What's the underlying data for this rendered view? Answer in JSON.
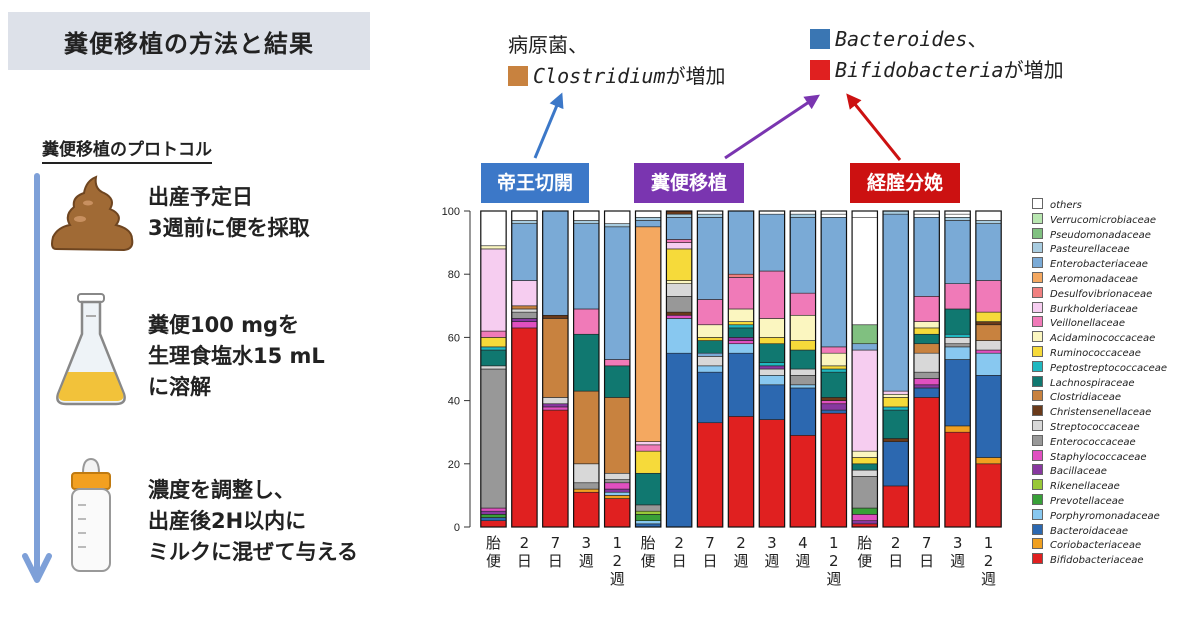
{
  "header": {
    "title": "糞便移植の方法と結果"
  },
  "protocol": {
    "heading": "糞便移植のプロトコル",
    "steps": [
      {
        "icon": "feces-icon",
        "text": "出産予定日\n3週前に便を採取"
      },
      {
        "icon": "flask-icon",
        "text": "糞便100 mgを\n生理食塩水15 mL\nに溶解"
      },
      {
        "icon": "baby-bottle-icon",
        "text": "濃度を調整し、\n出産後2H以内に\nミルクに混ぜて与える"
      }
    ]
  },
  "callouts": {
    "left": {
      "line1": "病原菌、",
      "taxon": "Clostridium",
      "suffix": "が増加",
      "swatch_color": "#c8823f"
    },
    "right": {
      "line1_taxon": "Bacteroides",
      "line1_suffix": "、",
      "line1_color": "#3a76b3",
      "line2_taxon": "Bifidobacteria",
      "line2_suffix": "が増加",
      "line2_color": "#e02020"
    }
  },
  "groups": [
    {
      "label": "帝王切開",
      "color": "#3c78c8"
    },
    {
      "label": "糞便移植",
      "color": "#7a35b0"
    },
    {
      "label": "経腟分娩",
      "color": "#cc1111"
    }
  ],
  "arrow_colors": [
    "#3c78c8",
    "#7a35b0",
    "#cc1111"
  ],
  "chart_data": {
    "type": "bar",
    "stacked": true,
    "ylim": [
      0,
      100
    ],
    "yticks": [
      0,
      20,
      40,
      60,
      80,
      100
    ],
    "categories": [
      "胎便",
      "2日",
      "7日",
      "3週",
      "12週",
      "胎便",
      "2日",
      "7日",
      "2週",
      "3週",
      "4週",
      "12週",
      "胎便",
      "2日",
      "7日",
      "3週",
      "12週"
    ],
    "category_glyphs": [
      [
        "胎",
        "便"
      ],
      [
        "2",
        "日"
      ],
      [
        "7",
        "日"
      ],
      [
        "3",
        "週"
      ],
      [
        "1",
        "2",
        "週"
      ],
      [
        "胎",
        "便"
      ],
      [
        "2",
        "日"
      ],
      [
        "7",
        "日"
      ],
      [
        "2",
        "週"
      ],
      [
        "3",
        "週"
      ],
      [
        "4",
        "週"
      ],
      [
        "1",
        "2",
        "週"
      ],
      [
        "胎",
        "便"
      ],
      [
        "2",
        "日"
      ],
      [
        "7",
        "日"
      ],
      [
        "3",
        "週"
      ],
      [
        "1",
        "2",
        "週"
      ]
    ],
    "legend_order": [
      "others",
      "Verrucomicrobiaceae",
      "Pseudomonadaceae",
      "Pasteurellaceae",
      "Enterobacteriaceae",
      "Aeromonadaceae",
      "Desulfovibrionaceae",
      "Burkholderiaceae",
      "Veillonellaceae",
      "Acidaminococcaceae",
      "Ruminococcaceae",
      "Peptostreptococcaceae",
      "Lachnospiraceae",
      "Clostridiaceae",
      "Christensenellaceae",
      "Streptococcaceae",
      "Enterococcaceae",
      "Staphylococcaceae",
      "Bacillaceae",
      "Rikenellaceae",
      "Prevotellaceae",
      "Porphyromonadaceae",
      "Bacteroidaceae",
      "Coriobacteriaceae",
      "Bifidobacteriaceae"
    ],
    "colors": {
      "others": "#ffffff",
      "Verrucomicrobiaceae": "#b8e6b0",
      "Pseudomonadaceae": "#80c080",
      "Pasteurellaceae": "#a8cce0",
      "Enterobacteriaceae": "#7aaad6",
      "Aeromonadaceae": "#f4a860",
      "Desulfovibrionaceae": "#f08080",
      "Burkholderiaceae": "#f6cdf0",
      "Veillonellaceae": "#f07ab8",
      "Acidaminococcaceae": "#fbf6c0",
      "Ruminococcaceae": "#f6da3a",
      "Peptostreptococcaceae": "#20b8c0",
      "Lachnospiraceae": "#107870",
      "Clostridiaceae": "#c8823f",
      "Christensenellaceae": "#6a3a1a",
      "Streptococcaceae": "#d8d8d8",
      "Enterococcaceae": "#989898",
      "Staphylococcaceae": "#e050c0",
      "Bacillaceae": "#8838a0",
      "Rikenellaceae": "#98c838",
      "Prevotellaceae": "#38a038",
      "Porphyromonadaceae": "#88c8f0",
      "Bacteroidaceae": "#2c68b0",
      "Coriobacteriaceae": "#f0a020",
      "Bifidobacteriaceae": "#e02020"
    },
    "bars": [
      [
        [
          "Bifidobacteriaceae",
          2
        ],
        [
          "Bacteroidaceae",
          1
        ],
        [
          "Prevotellaceae",
          1
        ],
        [
          "Bacillaceae",
          1
        ],
        [
          "Staphylococcaceae",
          1
        ],
        [
          "Enterococcaceae",
          44
        ],
        [
          "Streptococcaceae",
          1
        ],
        [
          "Lachnospiraceae",
          5
        ],
        [
          "Peptostreptococcaceae",
          1
        ],
        [
          "Ruminococcaceae",
          3
        ],
        [
          "Veillonellaceae",
          2
        ],
        [
          "Burkholderiaceae",
          26
        ],
        [
          "Acidaminococcaceae",
          1
        ],
        [
          "others",
          11
        ]
      ],
      [
        [
          "Bifidobacteriaceae",
          63
        ],
        [
          "Staphylococcaceae",
          2
        ],
        [
          "Bacillaceae",
          1
        ],
        [
          "Enterococcaceae",
          2
        ],
        [
          "Streptococcaceae",
          1
        ],
        [
          "Clostridiaceae",
          1
        ],
        [
          "Burkholderiaceae",
          8
        ],
        [
          "Enterobacteriaceae",
          18
        ],
        [
          "Pasteurellaceae",
          1
        ],
        [
          "others",
          3
        ]
      ],
      [
        [
          "Bifidobacteriaceae",
          37
        ],
        [
          "Staphylococcaceae",
          1
        ],
        [
          "Bacillaceae",
          1
        ],
        [
          "Streptococcaceae",
          2
        ],
        [
          "Clostridiaceae",
          25
        ],
        [
          "Christensenellaceae",
          1
        ],
        [
          "Enterobacteriaceae",
          33
        ]
      ],
      [
        [
          "Bifidobacteriaceae",
          11
        ],
        [
          "Coriobacteriaceae",
          1
        ],
        [
          "Enterococcaceae",
          2
        ],
        [
          "Streptococcaceae",
          6
        ],
        [
          "Clostridiaceae",
          23
        ],
        [
          "Lachnospiraceae",
          18
        ],
        [
          "Veillonellaceae",
          8
        ],
        [
          "Enterobacteriaceae",
          27
        ],
        [
          "Pasteurellaceae",
          1
        ],
        [
          "others",
          3
        ]
      ],
      [
        [
          "Bifidobacteriaceae",
          9
        ],
        [
          "Coriobacteriaceae",
          1
        ],
        [
          "Porphyromonadaceae",
          1
        ],
        [
          "Bacillaceae",
          1
        ],
        [
          "Staphylococcaceae",
          2
        ],
        [
          "Enterococcaceae",
          1
        ],
        [
          "Streptococcaceae",
          2
        ],
        [
          "Clostridiaceae",
          24
        ],
        [
          "Lachnospiraceae",
          10
        ],
        [
          "Veillonellaceae",
          2
        ],
        [
          "Enterobacteriaceae",
          42
        ],
        [
          "Pasteurellaceae",
          1
        ],
        [
          "others",
          4
        ]
      ],
      [
        [
          "Bacteroidaceae",
          1
        ],
        [
          "Porphyromonadaceae",
          1
        ],
        [
          "Prevotellaceae",
          2
        ],
        [
          "Rikenellaceae",
          1
        ],
        [
          "Enterococcaceae",
          2
        ],
        [
          "Lachnospiraceae",
          10
        ],
        [
          "Ruminococcaceae",
          7
        ],
        [
          "Veillonellaceae",
          2
        ],
        [
          "Burkholderiaceae",
          1
        ],
        [
          "Aeromonadaceae",
          68
        ],
        [
          "Enterobacteriaceae",
          2
        ],
        [
          "Pasteurellaceae",
          1
        ],
        [
          "others",
          2
        ]
      ],
      [
        [
          "Bacteroidaceae",
          55
        ],
        [
          "Porphyromonadaceae",
          11
        ],
        [
          "Staphylococcaceae",
          1
        ],
        [
          "Christensenellaceae",
          1
        ],
        [
          "Enterococcaceae",
          5
        ],
        [
          "Streptococcaceae",
          4
        ],
        [
          "Acidaminococcaceae",
          1
        ],
        [
          "Ruminococcaceae",
          10
        ],
        [
          "Burkholderiaceae",
          2
        ],
        [
          "Veillonellaceae",
          1
        ],
        [
          "Enterobacteriaceae",
          7
        ],
        [
          "Pasteurellaceae",
          1
        ],
        [
          "Christensenellaceae",
          1
        ]
      ],
      [
        [
          "Bifidobacteriaceae",
          33
        ],
        [
          "Bacteroidaceae",
          16
        ],
        [
          "Porphyromonadaceae",
          2
        ],
        [
          "Streptococcaceae",
          3
        ],
        [
          "Enterobacteriaceae",
          1
        ],
        [
          "Lachnospiraceae",
          4
        ],
        [
          "Ruminococcaceae",
          1
        ],
        [
          "Acidaminococcaceae",
          4
        ],
        [
          "Veillonellaceae",
          8
        ],
        [
          "Enterobacteriaceae",
          26
        ],
        [
          "Pasteurellaceae",
          1
        ],
        [
          "others",
          1
        ]
      ],
      [
        [
          "Bifidobacteriaceae",
          35
        ],
        [
          "Bacteroidaceae",
          20
        ],
        [
          "Porphyromonadaceae",
          3
        ],
        [
          "Staphylococcaceae",
          1
        ],
        [
          "Bacillaceae",
          1
        ],
        [
          "Lachnospiraceae",
          3
        ],
        [
          "Peptostreptococcaceae",
          1
        ],
        [
          "Ruminococcaceae",
          1
        ],
        [
          "Acidaminococcaceae",
          4
        ],
        [
          "Veillonellaceae",
          10
        ],
        [
          "Desulfovibrionaceae",
          1
        ],
        [
          "Enterobacteriaceae",
          20
        ]
      ],
      [
        [
          "Bifidobacteriaceae",
          34
        ],
        [
          "Bacteroidaceae",
          11
        ],
        [
          "Porphyromonadaceae",
          3
        ],
        [
          "Streptococcaceae",
          2
        ],
        [
          "Bacillaceae",
          1
        ],
        [
          "Peptostreptococcaceae",
          1
        ],
        [
          "Lachnospiraceae",
          6
        ],
        [
          "Ruminococcaceae",
          2
        ],
        [
          "Acidaminococcaceae",
          6
        ],
        [
          "Veillonellaceae",
          15
        ],
        [
          "Enterobacteriaceae",
          18
        ],
        [
          "others",
          1
        ]
      ],
      [
        [
          "Bifidobacteriaceae",
          29
        ],
        [
          "Bacteroidaceae",
          15
        ],
        [
          "Porphyromonadaceae",
          1
        ],
        [
          "Enterococcaceae",
          3
        ],
        [
          "Streptococcaceae",
          2
        ],
        [
          "Lachnospiraceae",
          6
        ],
        [
          "Ruminococcaceae",
          3
        ],
        [
          "Acidaminococcaceae",
          8
        ],
        [
          "Veillonellaceae",
          7
        ],
        [
          "Enterobacteriaceae",
          24
        ],
        [
          "Pasteurellaceae",
          1
        ]
      ],
      [
        [
          "Bifidobacteriaceae",
          36
        ],
        [
          "Bacteroidaceae",
          1
        ],
        [
          "Bacillaceae",
          2
        ],
        [
          "Staphylococcaceae",
          1
        ],
        [
          "Christensenellaceae",
          1
        ],
        [
          "Lachnospiraceae",
          8
        ],
        [
          "Peptostreptococcaceae",
          1
        ],
        [
          "Ruminococcaceae",
          1
        ],
        [
          "Acidaminococcaceae",
          4
        ],
        [
          "Veillonellaceae",
          2
        ],
        [
          "Enterobacteriaceae",
          41
        ],
        [
          "others",
          1
        ]
      ],
      [
        [
          "Bifidobacteriaceae",
          1
        ],
        [
          "Bacillaceae",
          1
        ],
        [
          "Staphylococcaceae",
          2
        ],
        [
          "Prevotellaceae",
          2
        ],
        [
          "Enterococcaceae",
          10
        ],
        [
          "Streptococcaceae",
          2
        ],
        [
          "Lachnospiraceae",
          2
        ],
        [
          "Ruminococcaceae",
          2
        ],
        [
          "Acidaminococcaceae",
          2
        ],
        [
          "Burkholderiaceae",
          32
        ],
        [
          "Enterobacteriaceae",
          2
        ],
        [
          "Pseudomonadaceae",
          6
        ],
        [
          "others",
          34
        ]
      ],
      [
        [
          "Bifidobacteriaceae",
          13
        ],
        [
          "Bacteroidaceae",
          14
        ],
        [
          "Christensenellaceae",
          1
        ],
        [
          "Lachnospiraceae",
          9
        ],
        [
          "Peptostreptococcaceae",
          1
        ],
        [
          "Ruminococcaceae",
          3
        ],
        [
          "Acidaminococcaceae",
          1
        ],
        [
          "Burkholderiaceae",
          1
        ],
        [
          "Enterobacteriaceae",
          56
        ],
        [
          "Pasteurellaceae",
          1
        ]
      ],
      [
        [
          "Bifidobacteriaceae",
          41
        ],
        [
          "Bacteroidaceae",
          3
        ],
        [
          "Bacillaceae",
          1
        ],
        [
          "Staphylococcaceae",
          2
        ],
        [
          "Enterococcaceae",
          2
        ],
        [
          "Streptococcaceae",
          6
        ],
        [
          "Clostridiaceae",
          3
        ],
        [
          "Lachnospiraceae",
          3
        ],
        [
          "Ruminococcaceae",
          2
        ],
        [
          "Acidaminococcaceae",
          2
        ],
        [
          "Veillonellaceae",
          8
        ],
        [
          "Enterobacteriaceae",
          25
        ],
        [
          "others",
          1
        ]
      ],
      [
        [
          "Bifidobacteriaceae",
          30
        ],
        [
          "Coriobacteriaceae",
          2
        ],
        [
          "Bacteroidaceae",
          21
        ],
        [
          "Porphyromonadaceae",
          4
        ],
        [
          "Enterococcaceae",
          1
        ],
        [
          "Streptococcaceae",
          2
        ],
        [
          "Peptostreptococcaceae",
          1
        ],
        [
          "Lachnospiraceae",
          8
        ],
        [
          "Veillonellaceae",
          8
        ],
        [
          "Enterobacteriaceae",
          20
        ],
        [
          "Pasteurellaceae",
          1
        ],
        [
          "others",
          1
        ]
      ],
      [
        [
          "Bifidobacteriaceae",
          20
        ],
        [
          "Coriobacteriaceae",
          2
        ],
        [
          "Bacteroidaceae",
          26
        ],
        [
          "Porphyromonadaceae",
          7
        ],
        [
          "Staphylococcaceae",
          1
        ],
        [
          "Streptococcaceae",
          3
        ],
        [
          "Clostridiaceae",
          5
        ],
        [
          "Christensenellaceae",
          1
        ],
        [
          "Ruminococcaceae",
          3
        ],
        [
          "Veillonellaceae",
          10
        ],
        [
          "Enterobacteriaceae",
          18
        ],
        [
          "Pasteurellaceae",
          1
        ],
        [
          "others",
          3
        ]
      ]
    ]
  }
}
